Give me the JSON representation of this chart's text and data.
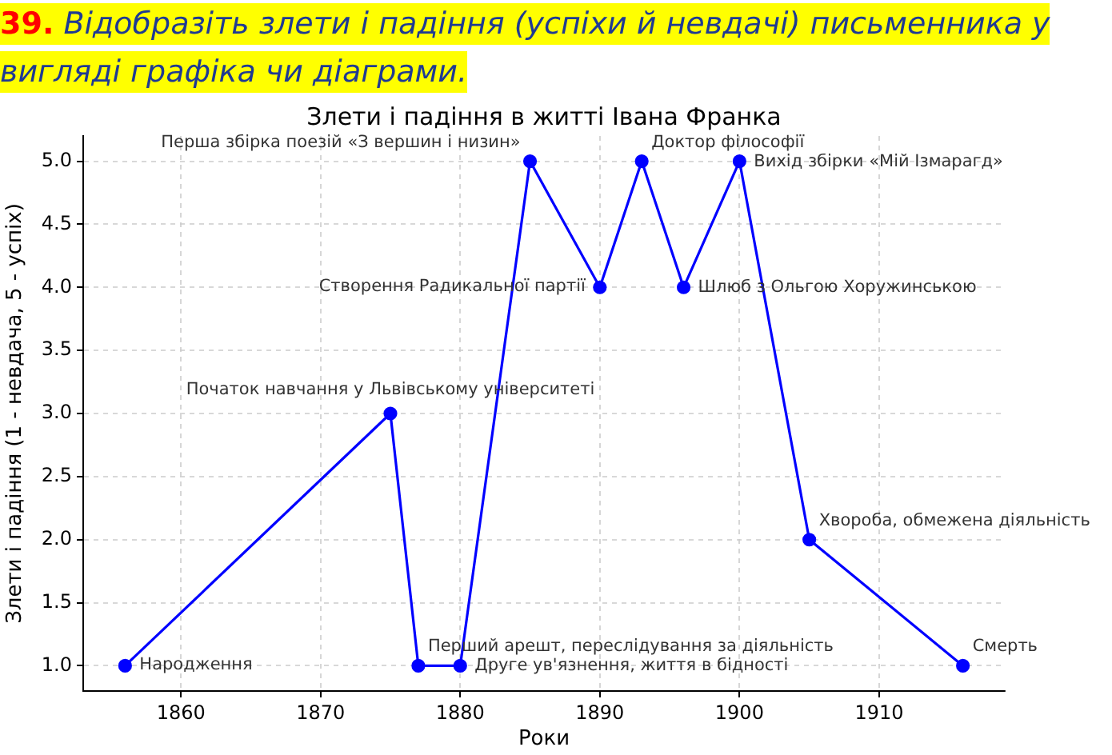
{
  "chart_data": {
    "type": "line",
    "title": "Злети і падіння в житті Івана Франка",
    "xlabel": "Роки",
    "ylabel": "Злети і падіння (1 - невдача, 5 - успіх)",
    "x": [
      1856,
      1875,
      1877,
      1880,
      1885,
      1890,
      1893,
      1896,
      1900,
      1905,
      1916
    ],
    "values": [
      1,
      3,
      1,
      1,
      5,
      4,
      5,
      4,
      5,
      2,
      1
    ],
    "color": "#0000ff",
    "xlim": [
      1853,
      1919
    ],
    "ylim": [
      0.8,
      5.2
    ],
    "xticks": [
      1860,
      1870,
      1880,
      1890,
      1900,
      1910
    ],
    "yticks": [
      {
        "value": 1,
        "label": "1.0"
      },
      {
        "value": 1.5,
        "label": "1.5"
      },
      {
        "value": 2,
        "label": "2.0"
      },
      {
        "value": 2.5,
        "label": "2.5"
      },
      {
        "value": 3,
        "label": "3.0"
      },
      {
        "value": 3.5,
        "label": "3.5"
      },
      {
        "value": 4,
        "label": "4.0"
      },
      {
        "value": 4.5,
        "label": "4.5"
      },
      {
        "value": 5,
        "label": "5.0"
      }
    ],
    "grid": true,
    "marker": "circle",
    "line_style": "solid",
    "annotations": [
      "39. Відобразіть злети і падіння (успіхи й невдачі) письменника у вигляді графіка чи діаграми.",
      {
        "text": "Народження",
        "x": 1856,
        "y": 1
      },
      {
        "text": "Початок навчання у Львівському університеті",
        "x": 1875,
        "y": 3
      },
      {
        "text": "Перший арешт, переслідування за діяльність",
        "x": 1877,
        "y": 1
      },
      {
        "text": "Друге ув'язнення, життя в бідності",
        "x": 1880,
        "y": 1
      },
      {
        "text": "Перша збірка поезій «З вершин і низин»",
        "x": 1885,
        "y": 5
      },
      {
        "text": "Створення Радикальної партії",
        "x": 1890,
        "y": 4
      },
      {
        "text": "Доктор філософії",
        "x": 1893,
        "y": 5
      },
      {
        "text": "Шлюб з Ольгою Хоружинською",
        "x": 1896,
        "y": 4
      },
      {
        "text": "Вихід збірки «Мій Ізмарагд»",
        "x": 1900,
        "y": 5
      },
      {
        "text": "Хвороба, обмежена діяльність",
        "x": 1905,
        "y": 2
      },
      {
        "text": "Смерть",
        "x": 1916,
        "y": 1
      }
    ]
  }
}
